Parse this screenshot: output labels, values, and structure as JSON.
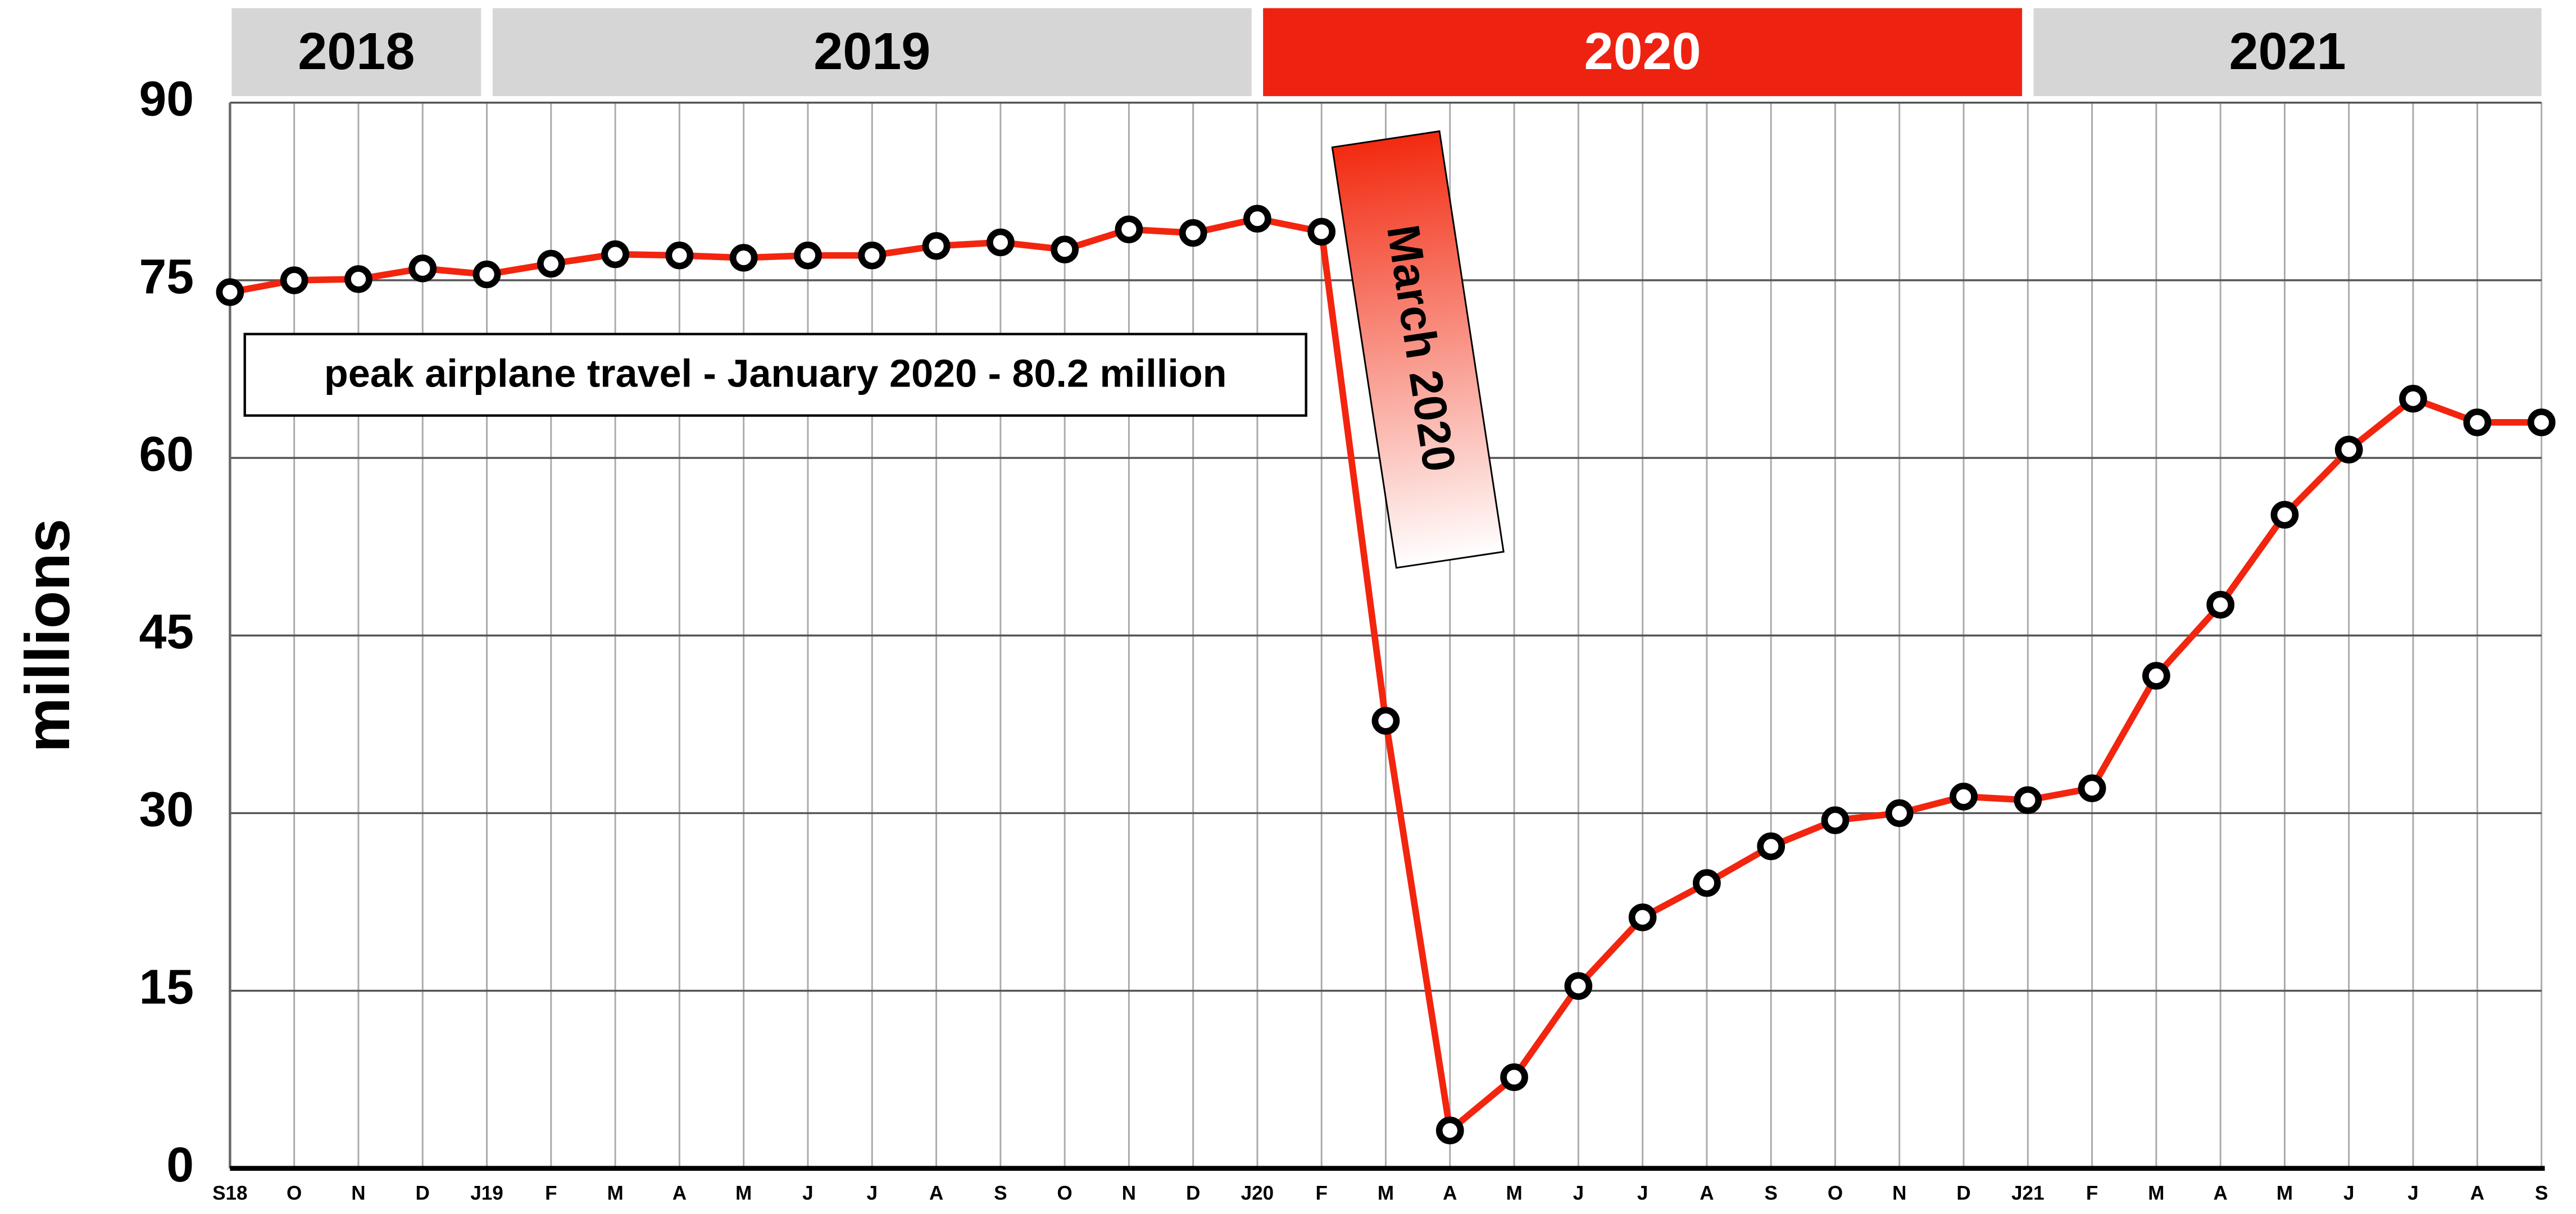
{
  "chart_data": {
    "type": "line",
    "y_label": "millions",
    "year_labels": [
      "2018",
      "2019",
      "2020",
      "2021"
    ],
    "year_colors": [
      "#d6d6d6",
      "#d6d6d6",
      "#ee2211",
      "#d6d6d6"
    ],
    "categories": [
      "S18",
      "O",
      "N",
      "D",
      "J19",
      "F",
      "M",
      "A",
      "M",
      "J",
      "J",
      "A",
      "S",
      "O",
      "N",
      "D",
      "J20",
      "F",
      "M",
      "A",
      "M",
      "J",
      "J",
      "A",
      "S",
      "O",
      "N",
      "D",
      "J21",
      "F",
      "M",
      "A",
      "M",
      "J",
      "J",
      "A",
      "S"
    ],
    "series": [
      {
        "name": "airplane travel",
        "color": "#f2250f",
        "values": [
          74.0,
          75.0,
          75.1,
          76.0,
          75.5,
          76.4,
          77.2,
          77.1,
          76.9,
          77.1,
          77.1,
          77.9,
          78.2,
          77.6,
          79.3,
          79.0,
          80.2,
          79.1,
          37.8,
          3.2,
          7.7,
          15.4,
          21.2,
          24.1,
          27.2,
          29.4,
          30.0,
          31.4,
          31.1,
          32.1,
          41.6,
          47.6,
          55.2,
          60.7,
          65.0,
          63.0,
          63.0
        ]
      }
    ],
    "ylim": [
      0,
      90
    ],
    "yticks": [
      0,
      15,
      30,
      45,
      60,
      75,
      90
    ],
    "grid": true,
    "annotations": [
      "peak airplane travel - January 2020 - 80.2 million",
      "March 2020"
    ]
  }
}
